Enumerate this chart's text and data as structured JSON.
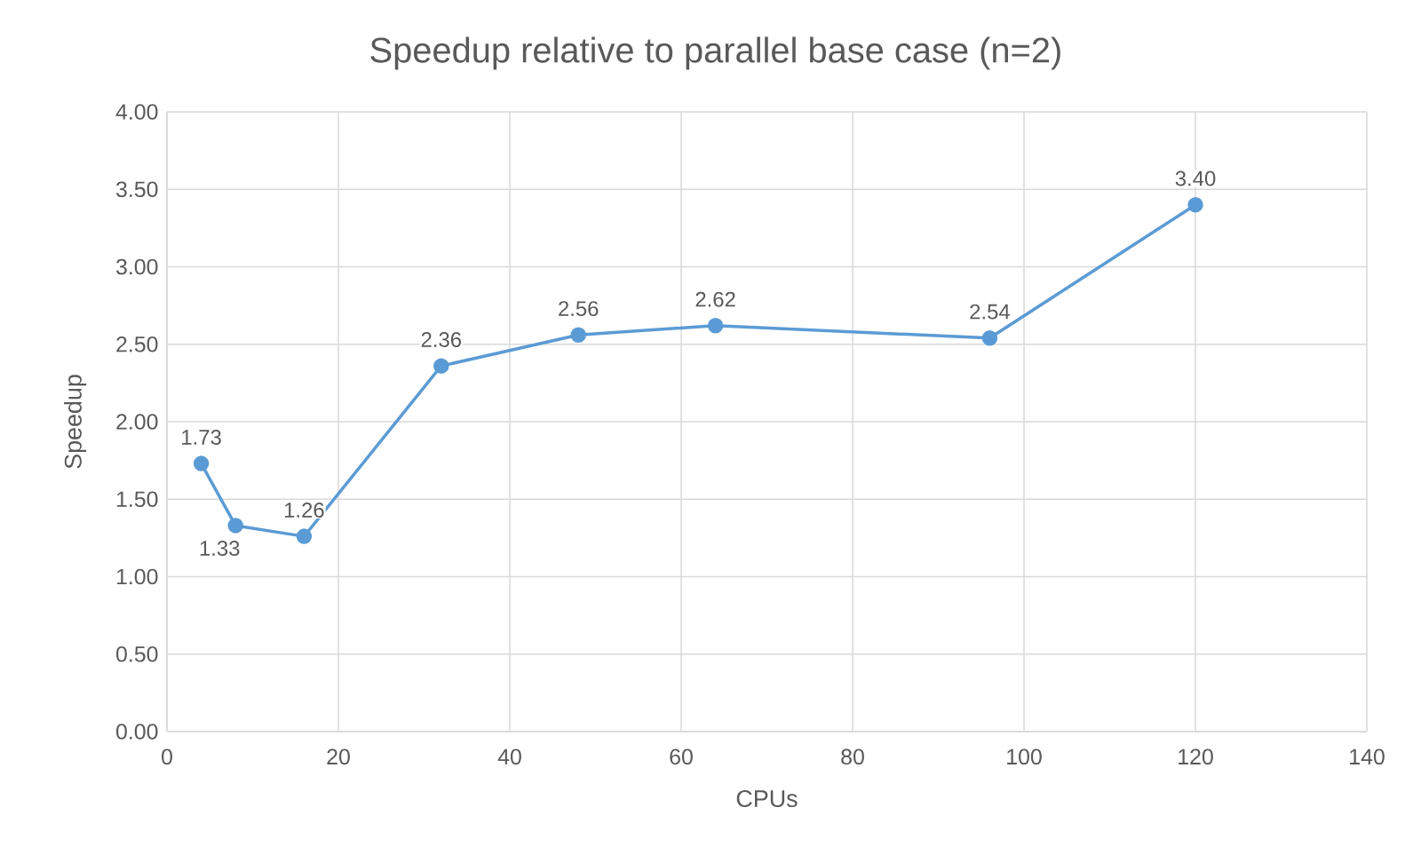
{
  "chart_data": {
    "type": "line",
    "title": "Speedup relative to parallel base case (n=2)",
    "xlabel": "CPUs",
    "ylabel": "Speedup",
    "x": [
      4,
      8,
      16,
      32,
      48,
      64,
      96,
      120
    ],
    "series": [
      {
        "color": "#5b9bd5",
        "values": [
          1.73,
          1.33,
          1.26,
          2.36,
          2.56,
          2.62,
          2.54,
          3.4
        ],
        "value_labels": [
          "1.73",
          "1.33",
          "1.26",
          "2.36",
          "2.56",
          "2.62",
          "2.54",
          "3.40"
        ]
      }
    ],
    "xlim": [
      0,
      140
    ],
    "xticks": [
      0,
      20,
      40,
      60,
      80,
      100,
      120,
      140
    ],
    "ylim": [
      0,
      4
    ],
    "yticks": [
      {
        "value": 0,
        "label": "0.00"
      },
      {
        "value": 0.5,
        "label": "0.50"
      },
      {
        "value": 1,
        "label": "1.00"
      },
      {
        "value": 1.5,
        "label": "1.50"
      },
      {
        "value": 2,
        "label": "2.00"
      },
      {
        "value": 2.5,
        "label": "2.50"
      },
      {
        "value": 3,
        "label": "3.00"
      },
      {
        "value": 3.5,
        "label": "3.50"
      },
      {
        "value": 4,
        "label": "4.00"
      }
    ],
    "grid": true,
    "marker": "circle",
    "line_style": "solid"
  }
}
